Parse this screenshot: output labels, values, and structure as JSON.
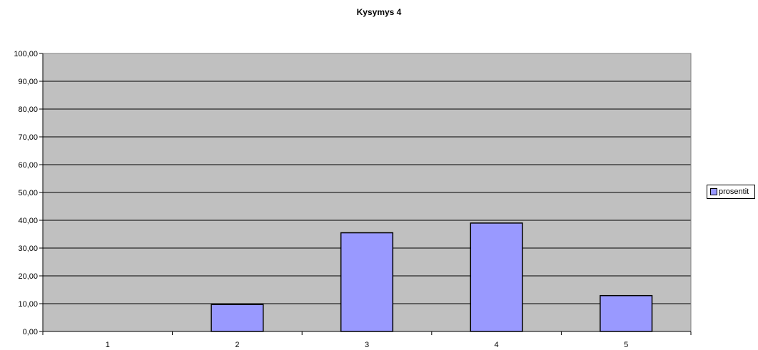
{
  "chart_data": {
    "type": "bar",
    "title": "Kysymys 4",
    "categories": [
      "1",
      "2",
      "3",
      "4",
      "5"
    ],
    "series": [
      {
        "name": "prosentit",
        "values": [
          0.0,
          9.7,
          35.5,
          39.0,
          12.9
        ]
      }
    ],
    "ylim": [
      0,
      100
    ],
    "yticks": [
      "0,00",
      "10,00",
      "20,00",
      "30,00",
      "40,00",
      "50,00",
      "60,00",
      "70,00",
      "80,00",
      "90,00",
      "100,00"
    ],
    "xlabel": "",
    "ylabel": "",
    "grid": true,
    "legend_position": "right",
    "colors": {
      "bar": "#9999ff",
      "plot_background": "#c0c0c0",
      "bar_border": "#000000"
    }
  }
}
